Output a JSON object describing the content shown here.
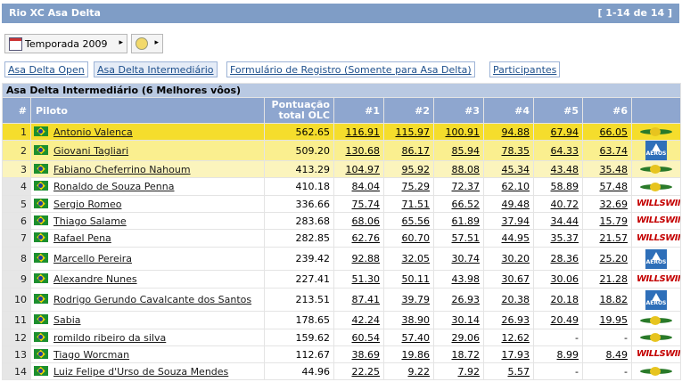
{
  "header": {
    "title": "Rio XC Asa Delta",
    "range": "[ 1-14 de 14 ]"
  },
  "season": {
    "label": "Temporada 2009",
    "calendar_icon": "calendar-icon",
    "arrow": "▸"
  },
  "glider_selector": {
    "icon": "glider-icon",
    "arrow": "▸"
  },
  "tabs": [
    {
      "label": "Asa Delta Open",
      "active": false
    },
    {
      "label": "Asa Delta Intermediário",
      "active": true
    },
    {
      "label": "Formulário de Registro (Somente para Asa Delta)",
      "active": false
    },
    {
      "label": "Participantes",
      "active": false
    }
  ],
  "table": {
    "caption": "Asa Delta Intermediário (6 Melhores vôos)",
    "columns": {
      "index": "#",
      "pilot": "Piloto",
      "total_line1": "Pontuação",
      "total_line2": "total OLC",
      "f1": "#1",
      "f2": "#2",
      "f3": "#3",
      "f4": "#4",
      "f5": "#5",
      "f6": "#6"
    },
    "rows": [
      {
        "rank": "1",
        "name": "Antonio Valenca",
        "total": "562.65",
        "f": [
          "116.91",
          "115.97",
          "100.91",
          "94.88",
          "67.94",
          "66.05"
        ],
        "logo": "glider"
      },
      {
        "rank": "2",
        "name": "Giovani Tagliari",
        "total": "509.20",
        "f": [
          "130.68",
          "86.17",
          "85.94",
          "78.35",
          "64.33",
          "63.74"
        ],
        "logo": "aeros"
      },
      {
        "rank": "3",
        "name": "Fabiano Cheferrino Nahoum",
        "total": "413.29",
        "f": [
          "104.97",
          "95.92",
          "88.08",
          "45.34",
          "43.48",
          "35.48"
        ],
        "logo": "glider"
      },
      {
        "rank": "4",
        "name": "Ronaldo de Souza Penna",
        "total": "410.18",
        "f": [
          "84.04",
          "75.29",
          "72.37",
          "62.10",
          "58.89",
          "57.48"
        ],
        "logo": "glider"
      },
      {
        "rank": "5",
        "name": "Sergio Romeo",
        "total": "336.66",
        "f": [
          "75.74",
          "71.51",
          "66.52",
          "49.48",
          "40.72",
          "32.69"
        ],
        "logo": "wills"
      },
      {
        "rank": "6",
        "name": "Thiago Salame",
        "total": "283.68",
        "f": [
          "68.06",
          "65.56",
          "61.89",
          "37.94",
          "34.44",
          "15.79"
        ],
        "logo": "wills"
      },
      {
        "rank": "7",
        "name": "Rafael Pena",
        "total": "282.85",
        "f": [
          "62.76",
          "60.70",
          "57.51",
          "44.95",
          "35.37",
          "21.57"
        ],
        "logo": "wills"
      },
      {
        "rank": "8",
        "name": "Marcello Pereira",
        "total": "239.42",
        "f": [
          "92.88",
          "32.05",
          "30.74",
          "30.20",
          "28.36",
          "25.20"
        ],
        "logo": "aeros"
      },
      {
        "rank": "9",
        "name": "Alexandre Nunes",
        "total": "227.41",
        "f": [
          "51.30",
          "50.11",
          "43.98",
          "30.67",
          "30.06",
          "21.28"
        ],
        "logo": "wills"
      },
      {
        "rank": "10",
        "name": "Rodrigo Gerundo Cavalcante dos Santos",
        "total": "213.51",
        "f": [
          "87.41",
          "39.79",
          "26.93",
          "20.38",
          "20.18",
          "18.82"
        ],
        "logo": "aeros"
      },
      {
        "rank": "11",
        "name": "Sabia",
        "total": "178.65",
        "f": [
          "42.24",
          "38.90",
          "30.14",
          "26.93",
          "20.49",
          "19.95"
        ],
        "logo": "glider"
      },
      {
        "rank": "12",
        "name": "romildo ribeiro da silva",
        "total": "159.62",
        "f": [
          "60.54",
          "57.40",
          "29.06",
          "12.62",
          "-",
          "-"
        ],
        "logo": "glider"
      },
      {
        "rank": "13",
        "name": "Tiago Worcman",
        "total": "112.67",
        "f": [
          "38.69",
          "19.86",
          "18.72",
          "17.93",
          "8.99",
          "8.49"
        ],
        "logo": "wills"
      },
      {
        "rank": "14",
        "name": "Luiz Felipe d'Urso de Souza Mendes",
        "total": "44.96",
        "f": [
          "22.25",
          "9.22",
          "7.92",
          "5.57",
          "-",
          "-"
        ],
        "logo": "glider"
      }
    ],
    "logo_text": {
      "wills": "WILLSWING",
      "aeros": "AEROS"
    }
  }
}
